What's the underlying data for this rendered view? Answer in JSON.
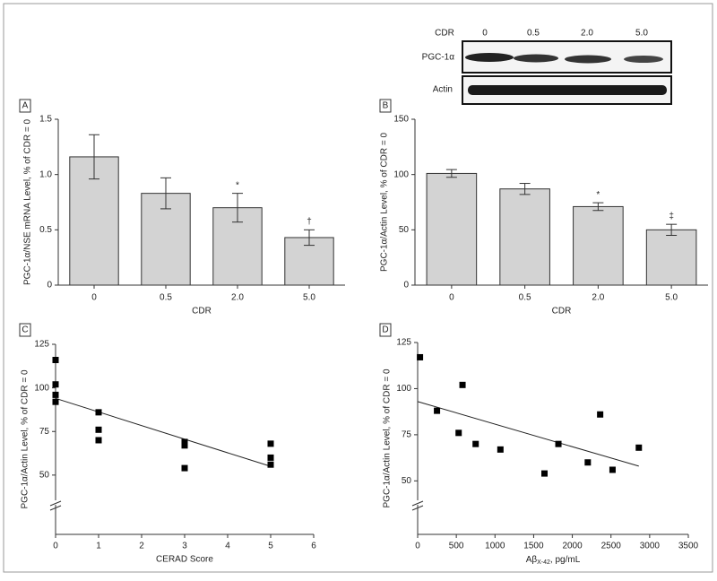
{
  "chart_data": [
    {
      "type": "bar",
      "label": "A",
      "ylabel": "PGC-1α/NSE mRNA Level, % of CDR = 0",
      "xlabel": "CDR",
      "categories": [
        "0",
        "0.5",
        "2.0",
        "5.0"
      ],
      "values": [
        1.16,
        0.83,
        0.7,
        0.43
      ],
      "errors": [
        0.2,
        0.14,
        0.13,
        0.07
      ],
      "annotations": [
        {
          "index": 2,
          "text": "*"
        },
        {
          "index": 3,
          "text": "†"
        }
      ],
      "color": "#d3d3d3",
      "ylim": [
        0,
        1.5
      ],
      "yticks": [
        0,
        0.5,
        {
          "value": 1,
          "label": "1.0"
        },
        1.5
      ]
    },
    {
      "type": "bar",
      "label": "B",
      "ylabel": "PGC-1α/Actin Level, % of CDR = 0",
      "xlabel": "CDR",
      "categories": [
        "0",
        "0.5",
        "2.0",
        "5.0"
      ],
      "values": [
        101,
        87,
        71,
        50
      ],
      "errors": [
        3.5,
        5,
        3.5,
        5
      ],
      "annotations": [
        {
          "index": 2,
          "text": "*"
        },
        {
          "index": 3,
          "text": "‡"
        }
      ],
      "color": "#d3d3d3",
      "ylim": [
        0,
        150
      ],
      "yticks": [
        0,
        50,
        100,
        150
      ]
    },
    {
      "type": "scatter",
      "label": "C",
      "ylabel": "PGC-1α/Actin Level, % of CDR = 0",
      "xlabel": "CERAD Score",
      "x": [
        0,
        0,
        0,
        0,
        1,
        1,
        1,
        3,
        3,
        3,
        5,
        5,
        5
      ],
      "y": [
        116,
        102,
        96,
        92,
        86,
        76,
        70,
        69,
        67,
        54,
        68,
        60,
        56
      ],
      "fit_x": [
        0,
        5
      ],
      "fit_y": [
        94,
        55
      ],
      "color": "#000000",
      "xlim": [
        0,
        6
      ],
      "xticks": [
        0,
        1,
        2,
        3,
        4,
        5,
        6
      ],
      "ylim": [
        16,
        125
      ],
      "yticks": [
        50,
        75,
        100,
        125
      ]
    },
    {
      "type": "scatter",
      "label": "D",
      "ylabel": "PGC-1α/Actin Level, % of CDR = 0",
      "xlabel_main": "Aβ",
      "xlabel_sub": "X-42",
      "xlabel_tail": ", pg/mL",
      "x": [
        30,
        250,
        530,
        580,
        750,
        1070,
        1640,
        1820,
        2200,
        2360,
        2520,
        2860
      ],
      "y": [
        117,
        88,
        76,
        102,
        70,
        67,
        54,
        70,
        60,
        86,
        56,
        68
      ],
      "fit_x": [
        0,
        2860
      ],
      "fit_y": [
        93,
        58
      ],
      "color": "#000000",
      "xlim": [
        0,
        3500
      ],
      "xticks": [
        0,
        500,
        1000,
        1500,
        2000,
        2500,
        3000,
        3500
      ],
      "ylim": [
        21,
        125
      ],
      "yticks": [
        50,
        75,
        100,
        125
      ]
    }
  ],
  "blot": {
    "header": "CDR",
    "lanes": [
      "0",
      "0.5",
      "2.0",
      "5.0"
    ],
    "rows": [
      "PGC-1α",
      "Actin"
    ]
  }
}
